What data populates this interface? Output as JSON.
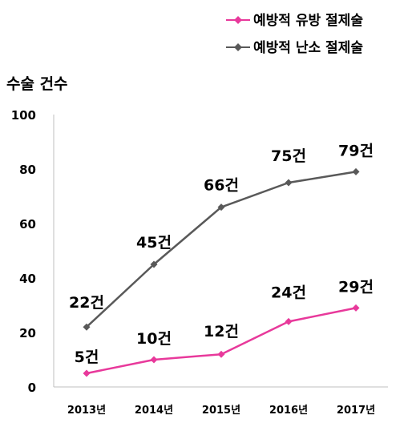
{
  "chart_data": {
    "type": "line",
    "categories": [
      "2013년",
      "2014년",
      "2015년",
      "2016년",
      "2017년"
    ],
    "ylabel": "수술 건수",
    "ylim": [
      0,
      100
    ],
    "yticks": [
      "0",
      "20",
      "40",
      "60",
      "80",
      "100"
    ],
    "grid": false,
    "legend_position": "top-right",
    "series": [
      {
        "name": "예방적 유방 절제술",
        "color": "#e8399b",
        "values": [
          5,
          10,
          12,
          24,
          29
        ],
        "labels": [
          "5건",
          "10건",
          "12건",
          "24건",
          "29건"
        ]
      },
      {
        "name": "예방적 난소 절제술",
        "color": "#595959",
        "values": [
          22,
          45,
          66,
          75,
          79
        ],
        "labels": [
          "22건",
          "45건",
          "66건",
          "75건",
          "79건"
        ]
      }
    ]
  }
}
